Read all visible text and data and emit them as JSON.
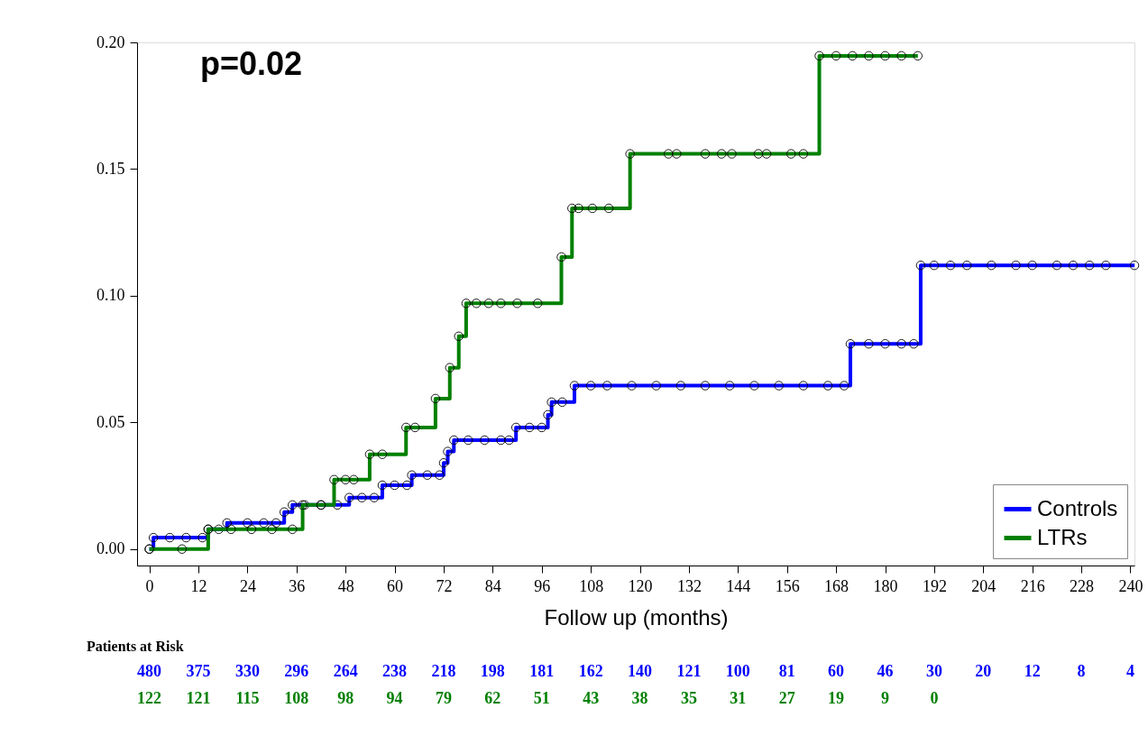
{
  "chart_data": {
    "type": "step",
    "xlabel": "Follow up (months)",
    "xlim": [
      -3,
      241
    ],
    "xticks": [
      0,
      12,
      24,
      36,
      48,
      60,
      72,
      84,
      96,
      108,
      120,
      132,
      144,
      156,
      168,
      180,
      192,
      204,
      216,
      228,
      240
    ],
    "ylim": [
      -0.0065,
      0.2
    ],
    "yticks": [
      {
        "value": 0,
        "label": "0.00"
      },
      {
        "value": 0.05,
        "label": "0.05"
      },
      {
        "value": 0.1,
        "label": "0.10"
      },
      {
        "value": 0.15,
        "label": "0.15"
      },
      {
        "value": 0.2,
        "label": "0.20"
      }
    ],
    "grid": false,
    "legend": "bottom right",
    "marker": "circle",
    "line_style": "solid",
    "series": [
      {
        "name": "Controls",
        "color": "#0000ff",
        "x": [
          0,
          1,
          5,
          9,
          13,
          14.4,
          17,
          19,
          24,
          28,
          31,
          33,
          35,
          38,
          42,
          46,
          48.9,
          52,
          55,
          57,
          60,
          63,
          64.2,
          68,
          71,
          72,
          73,
          74.5,
          78,
          82,
          86,
          88,
          89.7,
          93,
          96,
          97.5,
          98.4,
          101,
          104,
          108,
          112,
          118,
          124,
          130,
          136,
          142,
          148,
          154,
          160,
          166,
          170,
          171.5,
          176,
          180,
          184,
          187,
          188.7,
          192,
          196,
          200,
          206,
          212,
          216,
          222,
          226,
          230,
          234,
          241
        ],
        "values": [
          0,
          0.0045,
          0.0045,
          0.0045,
          0.0045,
          0.0078,
          0.0078,
          0.0103,
          0.0103,
          0.0103,
          0.0103,
          0.0146,
          0.0174,
          0.0174,
          0.0174,
          0.0174,
          0.0203,
          0.0203,
          0.0203,
          0.0252,
          0.0252,
          0.0252,
          0.0292,
          0.0292,
          0.0292,
          0.034,
          0.0385,
          0.043,
          0.043,
          0.043,
          0.043,
          0.043,
          0.048,
          0.048,
          0.048,
          0.053,
          0.058,
          0.058,
          0.0645,
          0.0645,
          0.0645,
          0.0645,
          0.0645,
          0.0645,
          0.0645,
          0.0645,
          0.0645,
          0.0645,
          0.0645,
          0.0645,
          0.0645,
          0.081,
          0.081,
          0.081,
          0.081,
          0.081,
          0.112,
          0.112,
          0.112,
          0.112,
          0.112,
          0.112,
          0.112,
          0.112,
          0.112,
          0.112,
          0.112,
          0.112
        ]
      },
      {
        "name": "LTRs",
        "color": "#008000",
        "x": [
          0,
          8,
          14.4,
          20,
          25,
          30,
          35,
          37.5,
          42,
          45.2,
          48,
          50,
          53.9,
          57,
          62.8,
          65,
          70,
          73.5,
          75.7,
          77.5,
          80,
          83,
          86,
          90,
          95,
          100.8,
          103.4,
          105,
          108.4,
          112.4,
          117.6,
          127,
          129,
          136,
          140,
          142.5,
          149,
          151,
          157,
          160,
          163.9,
          168,
          172,
          176,
          180,
          184,
          188
        ],
        "values": [
          0,
          0,
          0.0078,
          0.0078,
          0.0078,
          0.0078,
          0.0078,
          0.0174,
          0.0174,
          0.0274,
          0.0274,
          0.0274,
          0.0374,
          0.0374,
          0.048,
          0.048,
          0.0594,
          0.0716,
          0.084,
          0.097,
          0.097,
          0.097,
          0.097,
          0.097,
          0.097,
          0.1153,
          0.1345,
          0.1345,
          0.1345,
          0.1345,
          0.156,
          0.156,
          0.156,
          0.156,
          0.156,
          0.156,
          0.156,
          0.156,
          0.156,
          0.156,
          0.1947,
          0.1947,
          0.1947,
          0.1947,
          0.1947,
          0.1947,
          0.1947
        ]
      }
    ],
    "annotations": [
      "p=0.02",
      "Patients at Risk",
      "480",
      "375",
      "330",
      "296",
      "264",
      "238",
      "218",
      "198",
      "181",
      "162",
      "140",
      "121",
      "100",
      "81",
      "60",
      "46",
      "30",
      "20",
      "12",
      "8",
      "4",
      "122",
      "121",
      "115",
      "108",
      "98",
      "94",
      "79",
      "62",
      "51",
      "43",
      "38",
      "35",
      "31",
      "27",
      "19",
      "9",
      "0"
    ]
  }
}
